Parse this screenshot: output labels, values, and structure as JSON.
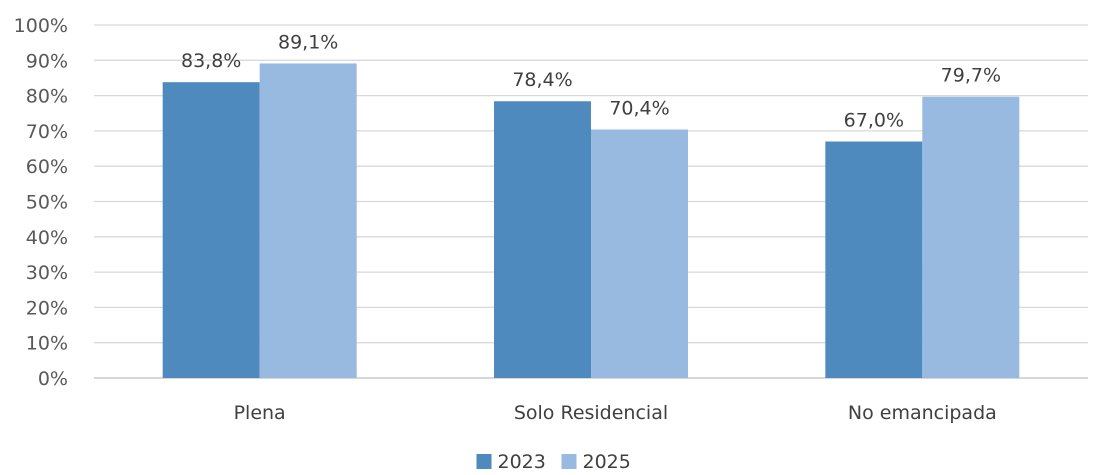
{
  "chart_data": {
    "type": "bar",
    "categories": [
      "Plena",
      "Solo Residencial",
      "No emancipada"
    ],
    "series": [
      {
        "name": "2023",
        "values": [
          83.8,
          78.4,
          67.0
        ],
        "labels": [
          "83,8%",
          "78,4%",
          "67,0%"
        ],
        "color": "#4f8abf"
      },
      {
        "name": "2025",
        "values": [
          89.1,
          70.4,
          79.7
        ],
        "labels": [
          "89,1%",
          "70,4%",
          "79,7%"
        ],
        "color": "#98b9e0"
      }
    ],
    "ylim": [
      0,
      100
    ],
    "yticks": [
      0,
      10,
      20,
      30,
      40,
      50,
      60,
      70,
      80,
      90,
      100
    ],
    "ytick_labels": [
      "0%",
      "10%",
      "20%",
      "30%",
      "40%",
      "50%",
      "60%",
      "70%",
      "80%",
      "90%",
      "100%"
    ],
    "grid": true,
    "legend_position": "bottom",
    "title": "",
    "xlabel": "",
    "ylabel": ""
  }
}
